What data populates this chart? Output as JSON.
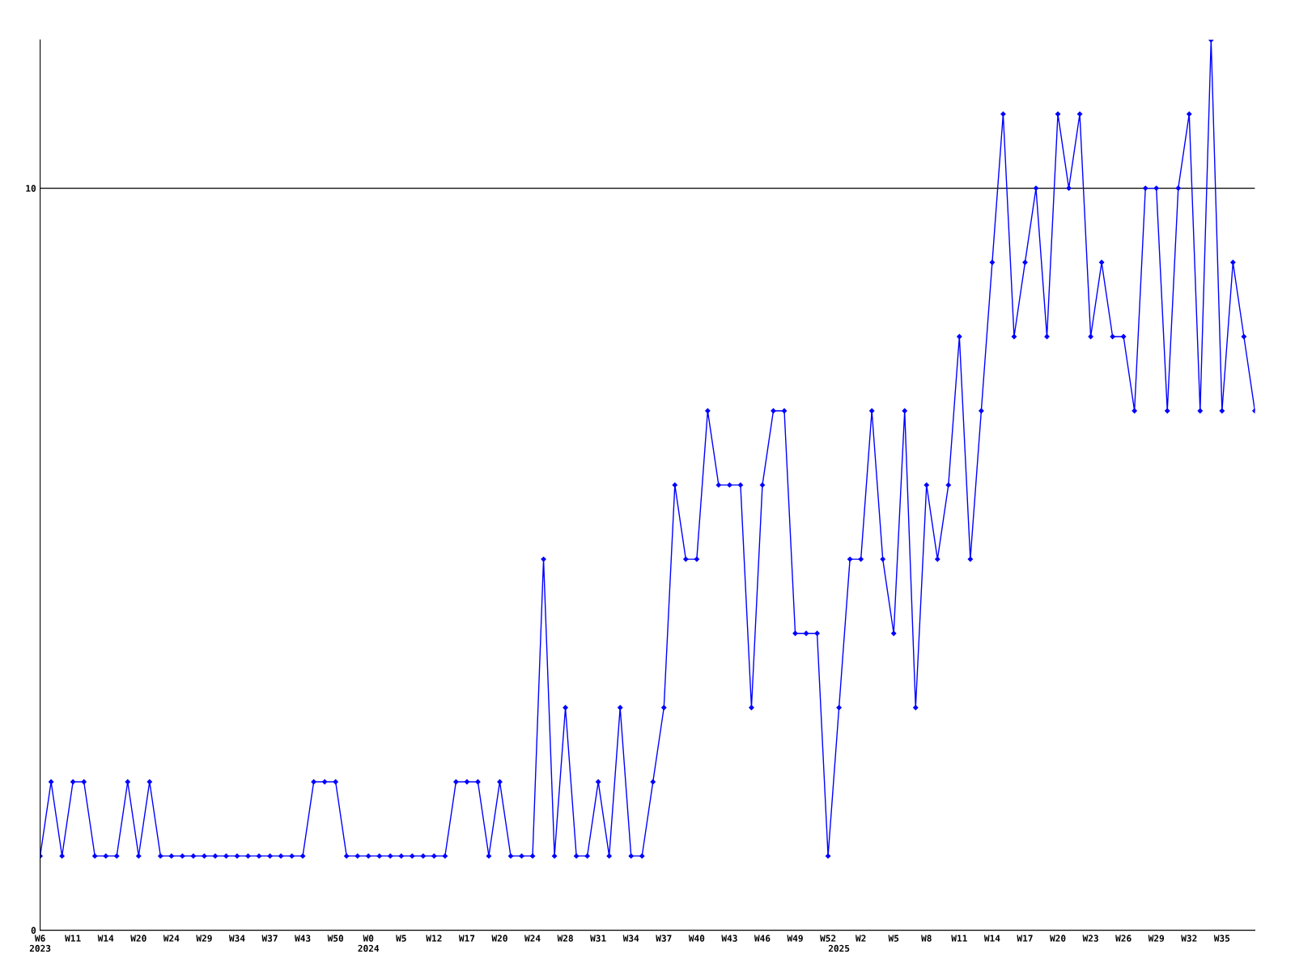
{
  "chart_data": {
    "type": "line",
    "categories": [
      "W6\n2023",
      null,
      null,
      "W11",
      null,
      null,
      "W14",
      null,
      null,
      "W20",
      null,
      null,
      "W24",
      null,
      null,
      "W29",
      null,
      null,
      "W34",
      null,
      null,
      "W37",
      null,
      null,
      "W43",
      null,
      null,
      "W50",
      null,
      null,
      "W0\n2024",
      null,
      null,
      "W5",
      null,
      null,
      "W12",
      null,
      null,
      "W17",
      null,
      null,
      "W20",
      null,
      null,
      "W24",
      null,
      null,
      "W28",
      null,
      null,
      "W31",
      null,
      null,
      "W34",
      null,
      null,
      "W37",
      null,
      null,
      "W40",
      null,
      null,
      "W43",
      null,
      null,
      "W46",
      null,
      null,
      "W49",
      null,
      null,
      "W52",
      "\n2025",
      null,
      "W2",
      null,
      null,
      "W5",
      null,
      null,
      "W8",
      null,
      null,
      "W11",
      null,
      null,
      "W14",
      null,
      null,
      "W17",
      null,
      null,
      "W20",
      null,
      null,
      "W23",
      null,
      null,
      "W26",
      null,
      null,
      "W29",
      null,
      null,
      "W32",
      null,
      null,
      "W35",
      null,
      null,
      null
    ],
    "series": [
      {
        "color": "#0000ff",
        "values": [
          1,
          2,
          1,
          2,
          2,
          1,
          1,
          1,
          2,
          1,
          2,
          1,
          1,
          1,
          1,
          1,
          1,
          1,
          1,
          1,
          1,
          1,
          1,
          1,
          1,
          2,
          2,
          2,
          1,
          1,
          1,
          1,
          1,
          1,
          1,
          1,
          1,
          1,
          2,
          2,
          2,
          1,
          2,
          1,
          1,
          1,
          5,
          1,
          3,
          1,
          1,
          2,
          1,
          3,
          1,
          1,
          2,
          3,
          6,
          5,
          5,
          7,
          6,
          6,
          6,
          3,
          6,
          7,
          7,
          4,
          4,
          4,
          1,
          3,
          5,
          5,
          7,
          5,
          4,
          7,
          3,
          6,
          5,
          6,
          8,
          5,
          7,
          9,
          11,
          8,
          9,
          10,
          8,
          11,
          10,
          11,
          8,
          9,
          8,
          8,
          7,
          10,
          10,
          7,
          10,
          11,
          7,
          12,
          7,
          9,
          8,
          7
        ]
      }
    ],
    "ylim": [
      0,
      12
    ],
    "yticks": [
      0,
      10
    ],
    "grid": "y",
    "marker": "diamond",
    "line_style": "solid",
    "legend": false
  }
}
